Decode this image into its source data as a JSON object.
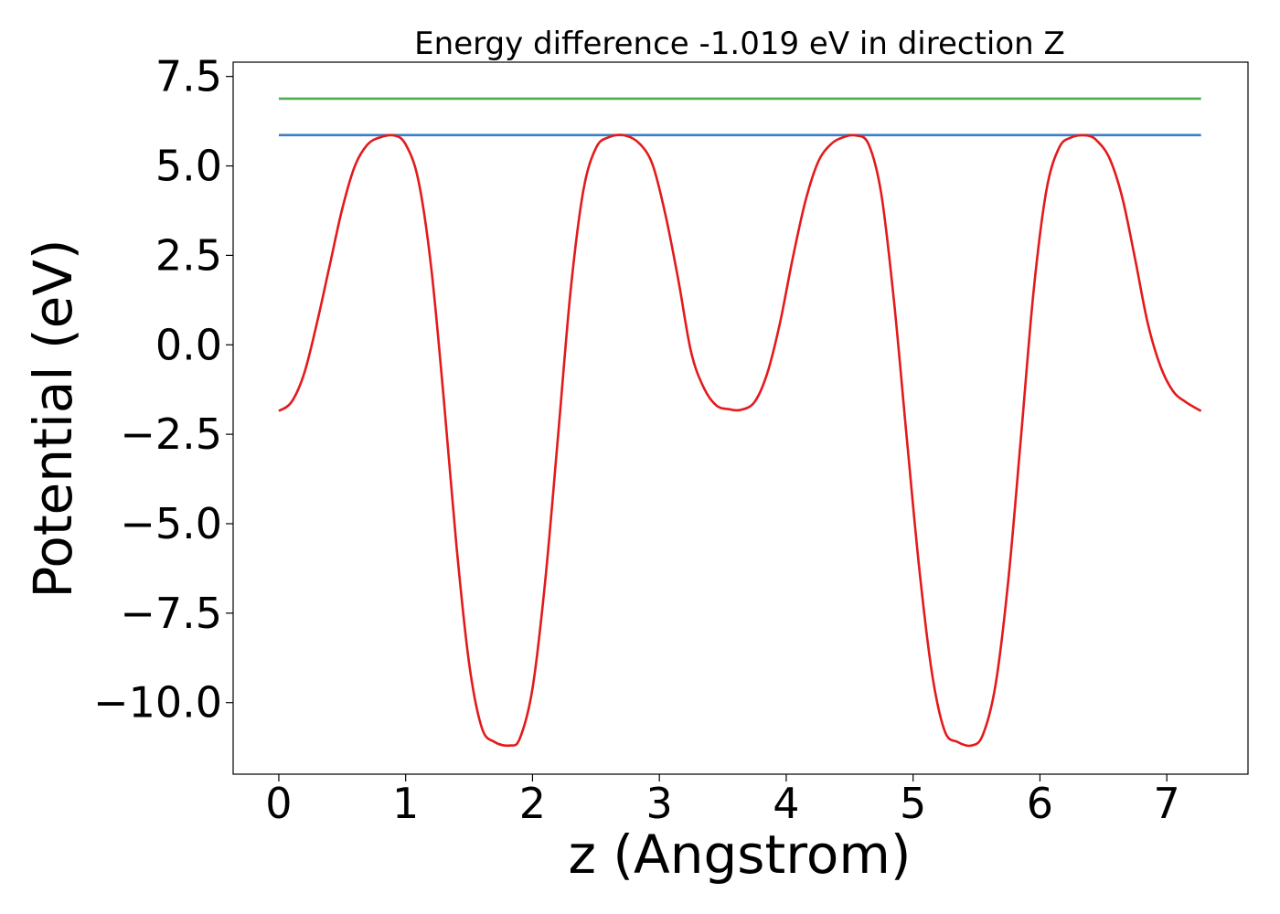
{
  "chart_data": {
    "type": "line",
    "title": "Energy difference -1.019 eV in direction Z",
    "xlabel": "z (Angstrom)",
    "ylabel": "Potential (eV)",
    "xlim": [
      -0.36,
      7.64
    ],
    "ylim": [
      -12.0,
      7.9
    ],
    "x_ticks": [
      0,
      1,
      2,
      3,
      4,
      5,
      6,
      7
    ],
    "x_tick_labels": [
      "0",
      "1",
      "2",
      "3",
      "4",
      "5",
      "6",
      "7"
    ],
    "y_ticks": [
      7.5,
      5.0,
      2.5,
      0.0,
      -2.5,
      -5.0,
      -7.5,
      -10.0
    ],
    "y_tick_labels": [
      "7.5",
      "5.0",
      "2.5",
      "0.0",
      "−2.5",
      "−5.0",
      "−7.5",
      "−10.0"
    ],
    "grid": false,
    "series": [
      {
        "color": "#4caf50",
        "style": "flat",
        "x": [
          0,
          7.27
        ],
        "y": [
          6.88,
          6.88
        ]
      },
      {
        "color": "#3a7fc4",
        "style": "flat",
        "x": [
          0,
          7.27
        ],
        "y": [
          5.86,
          5.86
        ]
      },
      {
        "color": "#e31a1c",
        "style": "curve",
        "x": [
          0,
          0.1,
          0.2,
          0.3,
          0.4,
          0.5,
          0.6,
          0.7,
          0.8,
          0.91,
          1.0,
          1.1,
          1.2,
          1.3,
          1.4,
          1.5,
          1.6,
          1.7,
          1.82,
          1.9,
          2.0,
          2.1,
          2.2,
          2.3,
          2.4,
          2.5,
          2.6,
          2.73,
          2.85,
          2.95,
          3.05,
          3.15,
          3.25,
          3.35,
          3.45,
          3.55,
          3.64,
          3.75,
          3.85,
          3.95,
          4.05,
          4.15,
          4.25,
          4.35,
          4.45,
          4.55,
          4.65,
          4.75,
          4.85,
          4.95,
          5.05,
          5.15,
          5.25,
          5.35,
          5.46,
          5.55,
          5.65,
          5.75,
          5.85,
          5.95,
          6.05,
          6.15,
          6.25,
          6.37,
          6.45,
          6.55,
          6.65,
          6.75,
          6.85,
          6.95,
          7.05,
          7.15,
          7.27
        ],
        "y": [
          -1.85,
          -1.6,
          -0.8,
          0.6,
          2.2,
          3.8,
          5.0,
          5.6,
          5.8,
          5.85,
          5.6,
          4.6,
          2.2,
          -1.5,
          -5.6,
          -8.9,
          -10.7,
          -11.1,
          -11.2,
          -11.0,
          -9.6,
          -6.6,
          -2.6,
          1.5,
          4.3,
          5.5,
          5.8,
          5.85,
          5.6,
          5.0,
          3.6,
          1.8,
          -0.2,
          -1.2,
          -1.7,
          -1.8,
          -1.82,
          -1.6,
          -0.8,
          0.6,
          2.4,
          4.0,
          5.1,
          5.6,
          5.8,
          5.85,
          5.6,
          4.2,
          1.2,
          -2.6,
          -6.3,
          -9.2,
          -10.8,
          -11.1,
          -11.2,
          -10.9,
          -9.5,
          -6.6,
          -2.6,
          1.5,
          4.3,
          5.5,
          5.8,
          5.85,
          5.7,
          5.2,
          4.1,
          2.4,
          0.6,
          -0.6,
          -1.3,
          -1.6,
          -1.85
        ]
      }
    ]
  }
}
